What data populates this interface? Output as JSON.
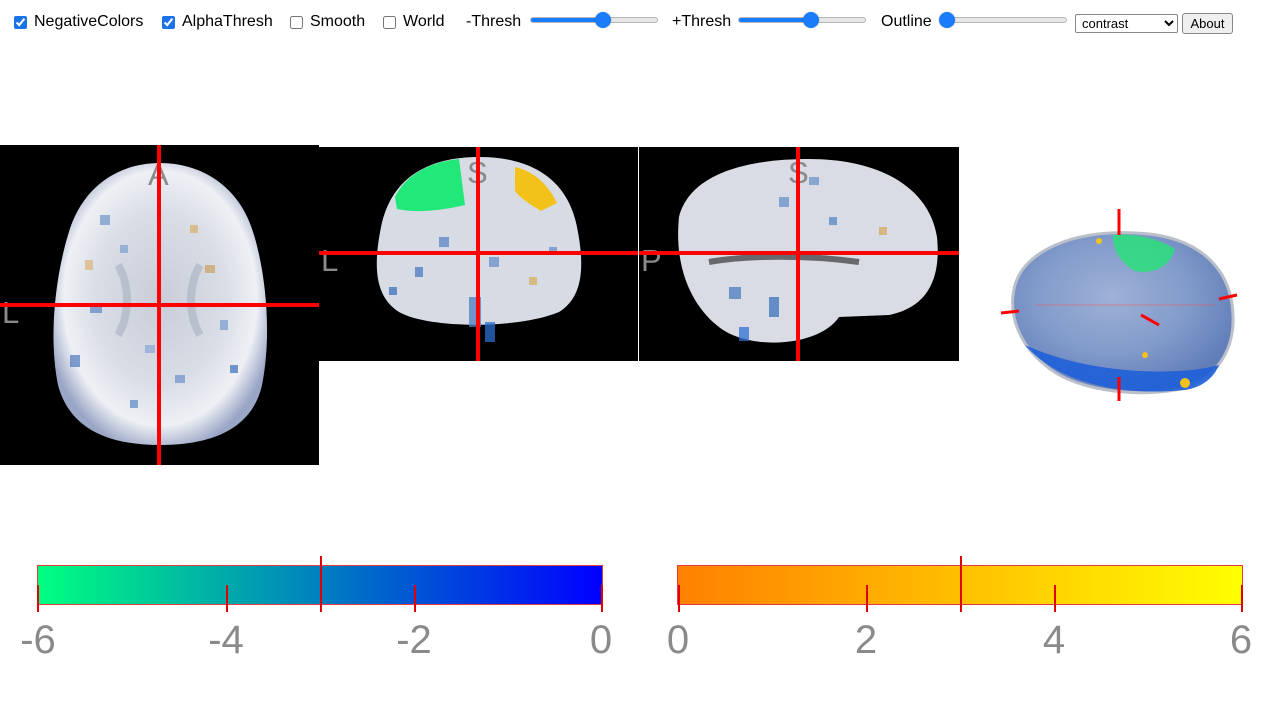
{
  "toolbar": {
    "checkboxes": [
      {
        "label": "NegativeColors",
        "checked": true
      },
      {
        "label": "AlphaThresh",
        "checked": true
      },
      {
        "label": "Smooth",
        "checked": false
      },
      {
        "label": "World",
        "checked": false
      }
    ],
    "sliders": [
      {
        "label": "-Thresh",
        "value_fraction": 0.58
      },
      {
        "label": "+Thresh",
        "value_fraction": 0.58
      },
      {
        "label": "Outline",
        "value_fraction": 0.0
      }
    ],
    "render_mode": {
      "selected": "contrast"
    },
    "about_label": "About"
  },
  "views": {
    "axial": {
      "top_label": "A",
      "left_label": "L"
    },
    "coronal": {
      "top_label": "S",
      "left_label": "L"
    },
    "sagittal": {
      "top_label": "S",
      "left_label": "P"
    }
  },
  "colorbars": {
    "negative": {
      "colors": [
        "#00ff80",
        "#0000ff"
      ],
      "tick_labels": [
        "-6",
        "-4",
        "-2",
        "0"
      ]
    },
    "positive": {
      "colors": [
        "#ff8000",
        "#ffff00"
      ],
      "tick_labels": [
        "0",
        "2",
        "4",
        "6"
      ]
    }
  },
  "colors": {
    "crosshair": "#ff0000",
    "slider_accent": "#1a7cfa",
    "label_gray": "#8a8a8a"
  }
}
